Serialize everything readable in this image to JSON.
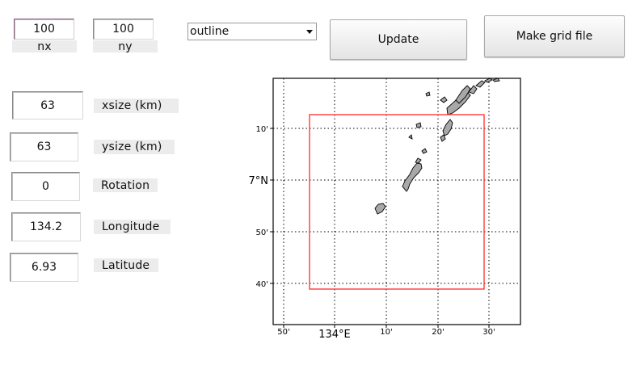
{
  "grid": {
    "nx": {
      "value": "100",
      "label": "nx"
    },
    "ny": {
      "value": "100",
      "label": "ny"
    }
  },
  "display_select": {
    "selected": "outline"
  },
  "buttons": {
    "update": "Update",
    "make_grid": "Make grid file"
  },
  "params": [
    {
      "key": "xsize",
      "value": "63",
      "label": "xsize (km)"
    },
    {
      "key": "ysize",
      "value": "63",
      "label": "ysize (km)"
    },
    {
      "key": "rotation",
      "value": "0",
      "label": "Rotation"
    },
    {
      "key": "longitude",
      "value": "134.2",
      "label": "Longitude"
    },
    {
      "key": "latitude",
      "value": "6.93",
      "label": "Latitude"
    }
  ],
  "map": {
    "x_ticks": [
      "50'",
      "134°E",
      "10'",
      "20'",
      "30'"
    ],
    "y_ticks": [
      "10'",
      "7°N",
      "50'",
      "40'"
    ],
    "grid_box_color": "#ff3b3b",
    "land_color": "#a8a8a8"
  }
}
